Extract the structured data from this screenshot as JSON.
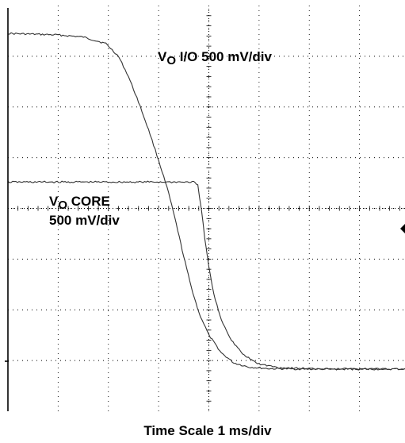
{
  "chart_data": {
    "type": "line",
    "grid": true,
    "divisions": {
      "x": 8,
      "y": 8
    },
    "xlim": [
      0,
      8
    ],
    "ylim": [
      0,
      8
    ],
    "x_label": "Time Scale 1 ms/div",
    "annotations": {
      "io": {
        "v": "V",
        "sub": "O",
        "rest": " I/O 500 mV/div"
      },
      "core": {
        "v": "V",
        "sub": "O",
        "rest": " CORE",
        "line2": "500 mV/div"
      }
    },
    "series": [
      {
        "key": "vo_io",
        "color": "#333333",
        "points": [
          [
            0,
            7.45
          ],
          [
            1,
            7.42
          ],
          [
            1.5,
            7.38
          ],
          [
            1.95,
            7.25
          ],
          [
            2.2,
            7.0
          ],
          [
            2.4,
            6.6
          ],
          [
            2.6,
            6.1
          ],
          [
            2.8,
            5.55
          ],
          [
            3.0,
            4.95
          ],
          [
            3.2,
            4.3
          ],
          [
            3.35,
            3.7
          ],
          [
            3.5,
            3.05
          ],
          [
            3.65,
            2.45
          ],
          [
            3.8,
            1.95
          ],
          [
            4.0,
            1.5
          ],
          [
            4.25,
            1.15
          ],
          [
            4.5,
            0.95
          ],
          [
            4.8,
            0.87
          ],
          [
            5.2,
            0.84
          ],
          [
            6,
            0.83
          ],
          [
            8,
            0.83
          ]
        ]
      },
      {
        "key": "vo_core",
        "color": "#333333",
        "points": [
          [
            0,
            4.52
          ],
          [
            3.7,
            4.52
          ],
          [
            3.78,
            4.45
          ],
          [
            3.85,
            4.0
          ],
          [
            3.92,
            3.4
          ],
          [
            4.0,
            2.85
          ],
          [
            4.1,
            2.3
          ],
          [
            4.25,
            1.8
          ],
          [
            4.45,
            1.4
          ],
          [
            4.7,
            1.1
          ],
          [
            5.0,
            0.93
          ],
          [
            5.4,
            0.86
          ],
          [
            6,
            0.84
          ],
          [
            8,
            0.83
          ]
        ]
      }
    ]
  }
}
